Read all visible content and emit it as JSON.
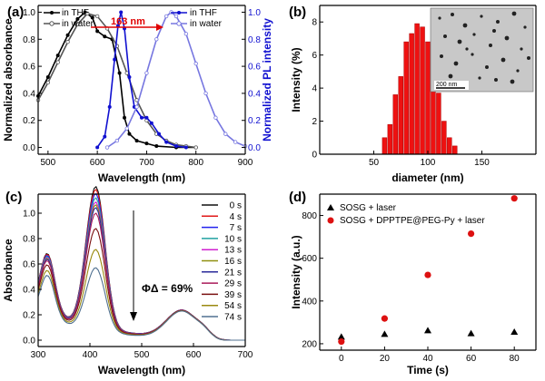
{
  "chart_data": [
    {
      "panel": "(a)",
      "type": "line",
      "xlabel": "Wavelength (nm)",
      "ylabel": "Normalized absorbance",
      "y2label": "Normalized PL intensity",
      "xlim": [
        480,
        900
      ],
      "ylim": [
        -0.05,
        1.05
      ],
      "y2lim": [
        -0.05,
        1.05
      ],
      "xticks": [
        500,
        600,
        700,
        800,
        900
      ],
      "yticks": [
        0.0,
        0.2,
        0.4,
        0.6,
        0.8,
        1.0
      ],
      "y2ticks": [
        0.0,
        0.2,
        0.4,
        0.6,
        0.8,
        1.0
      ],
      "annotation": "163 nm",
      "colors": {
        "absorbance": "#000000",
        "pl": "#1010d0",
        "arrow": "#e00000"
      },
      "legend_left": [
        "in THF",
        "in water"
      ],
      "legend_right": [
        "in THF",
        "in water"
      ],
      "series": [
        {
          "name": "in THF",
          "group": "absorbance",
          "style": "filled",
          "x": [
            480,
            500,
            520,
            540,
            560,
            575,
            590,
            600,
            615,
            630,
            645,
            655,
            665,
            680,
            700,
            720,
            760,
            800
          ],
          "y": [
            0.38,
            0.52,
            0.68,
            0.83,
            0.95,
            1.0,
            0.96,
            0.86,
            0.82,
            0.8,
            0.55,
            0.22,
            0.1,
            0.05,
            0.03,
            0.01,
            0.0,
            0.0
          ]
        },
        {
          "name": "in water",
          "group": "absorbance",
          "style": "open",
          "x": [
            480,
            500,
            520,
            540,
            560,
            580,
            600,
            620,
            640,
            660,
            680,
            700,
            720,
            740,
            760,
            780,
            800
          ],
          "y": [
            0.35,
            0.48,
            0.63,
            0.78,
            0.91,
            0.99,
            0.97,
            0.88,
            0.75,
            0.55,
            0.35,
            0.2,
            0.1,
            0.05,
            0.02,
            0.01,
            0.0
          ]
        },
        {
          "name": "in THF",
          "group": "pl",
          "style": "filled",
          "x": [
            600,
            615,
            625,
            635,
            642,
            648,
            655,
            665,
            675,
            690,
            700,
            710,
            725,
            740,
            760,
            780
          ],
          "y": [
            0.0,
            0.08,
            0.3,
            0.65,
            0.9,
            1.0,
            0.88,
            0.52,
            0.3,
            0.22,
            0.22,
            0.18,
            0.1,
            0.04,
            0.01,
            0.0
          ]
        },
        {
          "name": "in water",
          "group": "pl",
          "style": "open",
          "x": [
            620,
            640,
            660,
            680,
            700,
            720,
            740,
            750,
            760,
            780,
            800,
            820,
            840,
            860,
            880,
            900
          ],
          "y": [
            0.0,
            0.05,
            0.14,
            0.3,
            0.55,
            0.8,
            0.97,
            1.0,
            0.97,
            0.84,
            0.62,
            0.4,
            0.22,
            0.1,
            0.04,
            0.01
          ]
        }
      ]
    },
    {
      "panel": "(b)",
      "type": "bar",
      "xlabel": "diameter (nm)",
      "ylabel": "Intensity (%)",
      "xlim": [
        0,
        200
      ],
      "ylim": [
        0,
        9
      ],
      "xticks": [
        50,
        100,
        150
      ],
      "yticks": [
        0,
        2,
        4,
        6,
        8
      ],
      "color": "#ee1111",
      "inset_scale_label": "200 nm",
      "x": [
        60,
        65,
        70,
        75,
        80,
        85,
        90,
        95,
        100,
        105,
        110,
        115,
        120,
        125
      ],
      "values": [
        1,
        1.8,
        3.6,
        4.7,
        6.8,
        7.3,
        7.9,
        7.7,
        6.8,
        5.3,
        3.7,
        2.0,
        1.0,
        0.5
      ]
    },
    {
      "panel": "(c)",
      "type": "line",
      "xlabel": "Wavelength (nm)",
      "ylabel": "Absorbance",
      "xlim": [
        300,
        700
      ],
      "ylim": [
        -0.05,
        1.15
      ],
      "xticks": [
        300,
        400,
        500,
        600,
        700
      ],
      "yticks": [
        0.0,
        0.2,
        0.4,
        0.6,
        0.8,
        1.0
      ],
      "annotation": "ΦΔ = 69%",
      "times": [
        "0 s",
        "4 s",
        "7 s",
        "10 s",
        "13 s",
        "16 s",
        "21 s",
        "29 s",
        "39 s",
        "54 s",
        "74 s"
      ],
      "peak_values": [
        1.05,
        1.03,
        1.0,
        0.97,
        0.94,
        0.92,
        0.9,
        0.86,
        0.75,
        0.6,
        0.47
      ],
      "colors": [
        "#111111",
        "#e01818",
        "#2222ee",
        "#20a0a0",
        "#d020d0",
        "#909010",
        "#2a2a9a",
        "#aa1a5a",
        "#7a1010",
        "#9a8a10",
        "#507090"
      ]
    },
    {
      "panel": "(d)",
      "type": "scatter",
      "xlabel": "Time (s)",
      "ylabel": "Intensity (a.u.)",
      "xlim": [
        -10,
        90
      ],
      "ylim": [
        170,
        900
      ],
      "xticks": [
        0,
        20,
        40,
        60,
        80
      ],
      "yticks": [
        200,
        400,
        600,
        800
      ],
      "series": [
        {
          "name": "SOSG + laser",
          "marker": "triangle",
          "color": "#000000",
          "x": [
            0,
            20,
            40,
            60,
            80
          ],
          "y": [
            232,
            245,
            262,
            248,
            255
          ]
        },
        {
          "name": "SOSG + DPPTPE@PEG-Py + laser",
          "marker": "circle",
          "color": "#dd1111",
          "x": [
            0,
            20,
            40,
            60,
            80
          ],
          "y": [
            210,
            318,
            522,
            715,
            880
          ]
        }
      ]
    }
  ]
}
